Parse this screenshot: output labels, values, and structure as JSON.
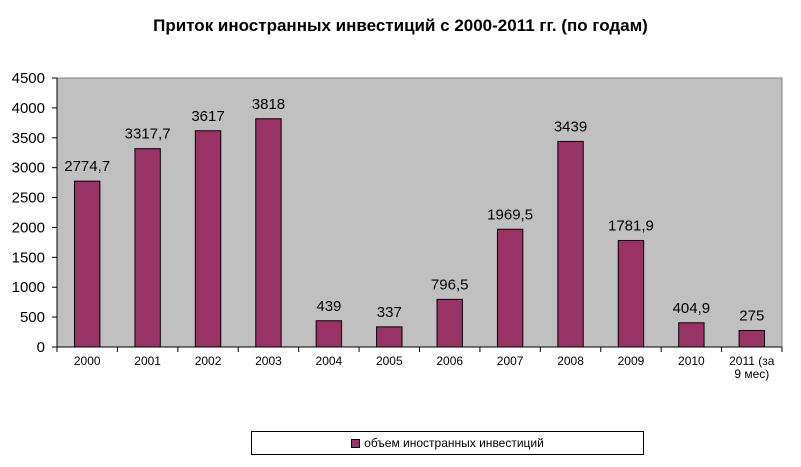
{
  "chart_data": {
    "type": "bar",
    "title": "Приток иностранных инвестиций с 2000-2011 гг. (по годам)",
    "categories": [
      "2000",
      "2001",
      "2002",
      "2003",
      "2004",
      "2005",
      "2006",
      "2007",
      "2008",
      "2009",
      "2010",
      "2011 (за 9 мес)"
    ],
    "series": [
      {
        "name": "объем иностранных инвестиций",
        "values": [
          2774.7,
          3317.7,
          3617,
          3818,
          439,
          337,
          796.5,
          1969.5,
          3439,
          1781.9,
          404.9,
          275
        ],
        "labels": [
          "2774,7",
          "3317,7",
          "3617",
          "3818",
          "439",
          "337",
          "796,5",
          "1969,5",
          "3439",
          "1781,9",
          "404,9",
          "275"
        ]
      }
    ],
    "ylim": [
      0,
      4500
    ],
    "yticks": [
      0,
      500,
      1000,
      1500,
      2000,
      2500,
      3000,
      3500,
      4000,
      4500
    ],
    "grid": false,
    "legend": "bottom",
    "colors": {
      "bar": "#993366",
      "plot_background": "#c0c0c0"
    }
  }
}
